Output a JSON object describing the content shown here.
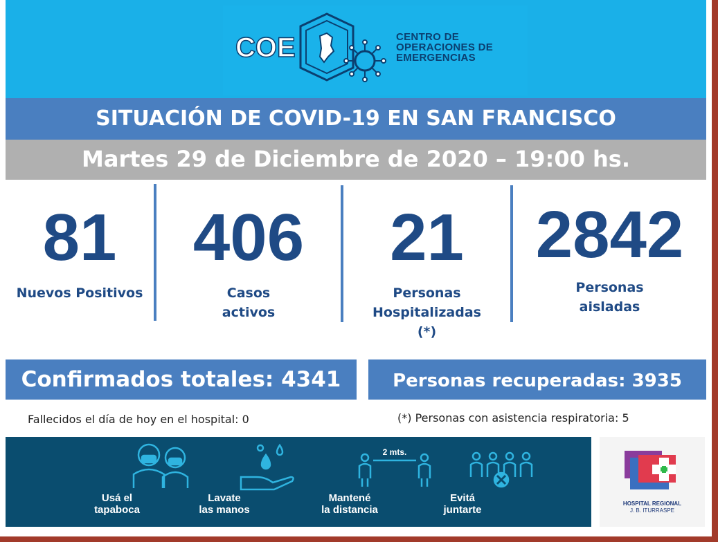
{
  "header": {
    "logo_text": "COE",
    "org_lines": [
      "CENTRO DE",
      "OPERACIONES DE",
      "EMERGENCIAS"
    ]
  },
  "title": "SITUACIÓN DE COVID-19 EN SAN FRANCISCO",
  "date": "Martes 29 de Diciembre de 2020 – 19:00 hs.",
  "stats": [
    {
      "value": "81",
      "label_lines": [
        "Nuevos Positivos"
      ]
    },
    {
      "value": "406",
      "label_lines": [
        "Casos",
        "activos"
      ]
    },
    {
      "value": "21",
      "label_lines": [
        "Personas",
        "Hospitalizadas",
        "(*)"
      ]
    },
    {
      "value": "2842",
      "label_lines": [
        "Personas",
        "aisladas"
      ]
    }
  ],
  "totals": {
    "confirmed": "Confirmados totales: 4341",
    "recovered": "Personas recuperadas: 3935"
  },
  "notes": {
    "deceased": "Fallecidos el día de hoy en el hospital: 0",
    "respiratory": "(*) Personas con asistencia respiratoria: 5"
  },
  "advice": [
    {
      "icon": "face-mask-icon",
      "lines": [
        "Usá el",
        "tapaboca"
      ]
    },
    {
      "icon": "hand-wash-icon",
      "lines": [
        "Lavate",
        "las manos"
      ]
    },
    {
      "icon": "distance-icon",
      "lines": [
        "Mantené",
        "la distancia"
      ],
      "badge": "2 mts."
    },
    {
      "icon": "group-avoid-icon",
      "lines": [
        "Evitá",
        "juntarte"
      ]
    }
  ],
  "hospital": {
    "lines": [
      "HOSPITAL REGIONAL",
      "J. B. ITURRASPE"
    ]
  },
  "colors": {
    "header_bg": "#1ab0e8",
    "title_bg": "#4a7fc0",
    "date_bg": "#b0b0b0",
    "stat_text": "#1f4a85",
    "footer_bg": "#0a4d6f",
    "frame": "#a23a2a"
  }
}
